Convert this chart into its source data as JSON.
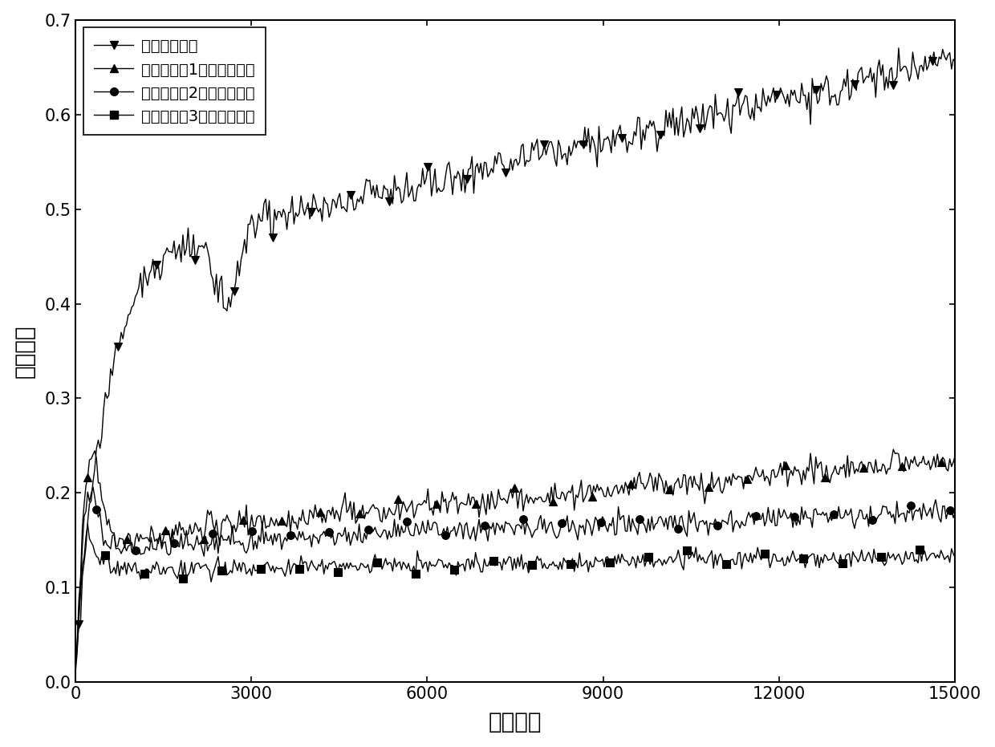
{
  "title": "",
  "xlabel": "循环次数",
  "ylabel": "摩擦系数",
  "xlim": [
    0,
    15000
  ],
  "ylim": [
    0.0,
    0.7
  ],
  "xticks": [
    0,
    3000,
    6000,
    9000,
    12000,
    15000
  ],
  "yticks": [
    0.0,
    0.1,
    0.2,
    0.3,
    0.4,
    0.5,
    0.6,
    0.7
  ],
  "legend_labels": [
    "不添加润滑剂",
    "添加实施例1所制备润滑剂",
    "添加实施例2所制备润滑剂",
    "添加实施例3所制备润滑剂"
  ],
  "line_color": "#000000",
  "marker_size": 7,
  "linewidth": 1.0,
  "n_points": 500
}
